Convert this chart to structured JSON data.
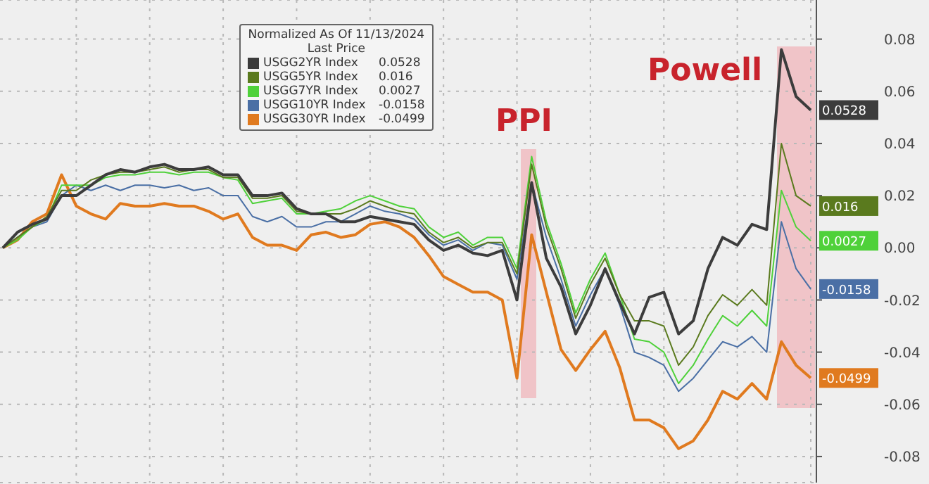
{
  "chart_data": {
    "type": "line",
    "legend_title": "Normalized As Of 11/13/2024\nLast Price",
    "legend": "top",
    "grid": true,
    "tick_labels": "y",
    "line_style": "solid",
    "marker": "none",
    "categories": [
      null,
      null,
      null,
      null,
      null,
      null,
      null,
      null,
      null,
      null,
      null,
      null,
      null,
      null,
      null,
      null,
      null,
      null,
      null,
      null,
      null,
      null,
      null,
      null,
      null,
      null,
      null,
      null,
      null,
      null,
      null,
      null,
      null,
      null,
      null,
      null,
      null,
      null,
      null,
      null,
      null,
      null,
      null,
      null,
      null,
      null,
      null,
      null,
      null,
      null,
      null,
      null,
      null,
      null,
      null,
      null
    ],
    "ylim": [
      -0.09,
      0.095
    ],
    "yticks": [
      -0.08,
      -0.06,
      -0.04,
      -0.02,
      {
        "value": 0,
        "label": "0.00"
      },
      0.02,
      0.04,
      0.06,
      0.08
    ],
    "annotations": [
      "PPI",
      "Powell"
    ],
    "series": [
      {
        "name": "USGG2YR Index",
        "color": "#3c3c3c",
        "values": [
          0,
          0.006,
          0.009,
          0.011,
          0.02,
          0.02,
          0.024,
          0.028,
          0.03,
          0.029,
          0.031,
          0.032,
          0.03,
          0.03,
          0.031,
          0.028,
          0.028,
          0.02,
          0.02,
          0.021,
          0.015,
          0.013,
          0.013,
          0.01,
          0.01,
          0.012,
          0.011,
          0.01,
          0.009,
          0.003,
          -0.001,
          0.001,
          -0.002,
          -0.003,
          -0.001,
          -0.02,
          0.025,
          -0.004,
          -0.015,
          -0.033,
          -0.022,
          -0.008,
          -0.021,
          -0.033,
          -0.019,
          -0.017,
          -0.033,
          -0.028,
          -0.008,
          0.004,
          0.001,
          0.009,
          0.007,
          0.076,
          0.058,
          0.0528
        ],
        "value_labels": [
          null,
          null,
          null,
          null,
          null,
          null,
          null,
          null,
          null,
          null,
          null,
          null,
          null,
          null,
          null,
          null,
          null,
          null,
          null,
          null,
          null,
          null,
          null,
          null,
          null,
          null,
          null,
          null,
          null,
          null,
          null,
          null,
          null,
          null,
          null,
          null,
          null,
          null,
          null,
          null,
          null,
          null,
          null,
          null,
          null,
          null,
          null,
          null,
          null,
          null,
          null,
          null,
          null,
          null,
          null,
          "0.0528"
        ]
      },
      {
        "name": "USGG5YR Index",
        "color": "#5a7a1e",
        "values": [
          0,
          0.004,
          0.008,
          0.012,
          0.022,
          0.022,
          0.026,
          0.028,
          0.029,
          0.029,
          0.03,
          0.031,
          0.029,
          0.03,
          0.03,
          0.027,
          0.027,
          0.019,
          0.019,
          0.02,
          0.014,
          0.013,
          0.013,
          0.013,
          0.015,
          0.018,
          0.016,
          0.014,
          0.013,
          0.006,
          0.002,
          0.004,
          0.0,
          0.002,
          0.002,
          -0.01,
          0.032,
          0.008,
          -0.008,
          -0.027,
          -0.014,
          -0.004,
          -0.018,
          -0.028,
          -0.028,
          -0.03,
          -0.045,
          -0.038,
          -0.026,
          -0.018,
          -0.022,
          -0.016,
          -0.022,
          0.04,
          0.02,
          0.016
        ],
        "value_labels": [
          null,
          null,
          null,
          null,
          null,
          null,
          null,
          null,
          null,
          null,
          null,
          null,
          null,
          null,
          null,
          null,
          null,
          null,
          null,
          null,
          null,
          null,
          null,
          null,
          null,
          null,
          null,
          null,
          null,
          null,
          null,
          null,
          null,
          null,
          null,
          null,
          null,
          null,
          null,
          null,
          null,
          null,
          null,
          null,
          null,
          null,
          null,
          null,
          null,
          null,
          null,
          null,
          null,
          null,
          null,
          "0.016"
        ]
      },
      {
        "name": "USGG7YR Index",
        "color": "#4fd13a",
        "values": [
          0,
          0.003,
          0.008,
          0.011,
          0.024,
          0.024,
          0.024,
          0.027,
          0.028,
          0.028,
          0.029,
          0.029,
          0.028,
          0.029,
          0.029,
          0.027,
          0.026,
          0.017,
          0.018,
          0.019,
          0.013,
          0.013,
          0.014,
          0.015,
          0.018,
          0.02,
          0.018,
          0.016,
          0.015,
          0.008,
          0.004,
          0.006,
          0.001,
          0.004,
          0.004,
          -0.008,
          0.035,
          0.01,
          -0.006,
          -0.025,
          -0.012,
          -0.002,
          -0.018,
          -0.035,
          -0.036,
          -0.04,
          -0.052,
          -0.045,
          -0.035,
          -0.026,
          -0.03,
          -0.024,
          -0.03,
          0.022,
          0.008,
          0.0027
        ],
        "value_labels": [
          null,
          null,
          null,
          null,
          null,
          null,
          null,
          null,
          null,
          null,
          null,
          null,
          null,
          null,
          null,
          null,
          null,
          null,
          null,
          null,
          null,
          null,
          null,
          null,
          null,
          null,
          null,
          null,
          null,
          null,
          null,
          null,
          null,
          null,
          null,
          null,
          null,
          null,
          null,
          null,
          null,
          null,
          null,
          null,
          null,
          null,
          null,
          null,
          null,
          null,
          null,
          null,
          null,
          null,
          null,
          "0.0027"
        ]
      },
      {
        "name": "USGG10YR Index",
        "color": "#4a6fa5",
        "values": [
          0,
          0.004,
          0.008,
          0.01,
          0.02,
          0.024,
          0.022,
          0.024,
          0.022,
          0.024,
          0.024,
          0.023,
          0.024,
          0.022,
          0.023,
          0.02,
          0.02,
          0.012,
          0.01,
          0.012,
          0.008,
          0.008,
          0.01,
          0.01,
          0.013,
          0.016,
          0.014,
          0.013,
          0.011,
          0.005,
          0.001,
          0.003,
          -0.001,
          0.002,
          0.001,
          -0.012,
          0.025,
          0.004,
          -0.012,
          -0.03,
          -0.018,
          -0.008,
          -0.022,
          -0.04,
          -0.042,
          -0.045,
          -0.055,
          -0.05,
          -0.043,
          -0.036,
          -0.038,
          -0.034,
          -0.04,
          0.01,
          -0.008,
          -0.0158
        ],
        "value_labels": [
          null,
          null,
          null,
          null,
          null,
          null,
          null,
          null,
          null,
          null,
          null,
          null,
          null,
          null,
          null,
          null,
          null,
          null,
          null,
          null,
          null,
          null,
          null,
          null,
          null,
          null,
          null,
          null,
          null,
          null,
          null,
          null,
          null,
          null,
          null,
          null,
          null,
          null,
          null,
          null,
          null,
          null,
          null,
          null,
          null,
          null,
          null,
          null,
          null,
          null,
          null,
          null,
          null,
          null,
          null,
          "-0.0158"
        ]
      },
      {
        "name": "USGG30YR Index",
        "color": "#e07a1f",
        "values": [
          0,
          0.003,
          0.01,
          0.013,
          0.028,
          0.016,
          0.013,
          0.011,
          0.017,
          0.016,
          0.016,
          0.017,
          0.016,
          0.016,
          0.014,
          0.011,
          0.013,
          0.004,
          0.001,
          0.001,
          -0.001,
          0.005,
          0.006,
          0.004,
          0.005,
          0.009,
          0.01,
          0.008,
          0.004,
          -0.003,
          -0.011,
          -0.014,
          -0.017,
          -0.017,
          -0.02,
          -0.05,
          0.005,
          -0.017,
          -0.039,
          -0.047,
          -0.039,
          -0.032,
          -0.046,
          -0.066,
          -0.066,
          -0.069,
          -0.077,
          -0.074,
          -0.066,
          -0.055,
          -0.058,
          -0.052,
          -0.058,
          -0.036,
          -0.045,
          -0.0499
        ],
        "value_labels": [
          null,
          null,
          null,
          null,
          null,
          null,
          null,
          null,
          null,
          null,
          null,
          null,
          null,
          null,
          null,
          null,
          null,
          null,
          null,
          null,
          null,
          null,
          null,
          null,
          null,
          null,
          null,
          null,
          null,
          null,
          null,
          null,
          null,
          null,
          null,
          null,
          null,
          null,
          null,
          null,
          null,
          null,
          null,
          null,
          null,
          null,
          null,
          null,
          null,
          null,
          null,
          null,
          null,
          null,
          null,
          "-0.0499"
        ]
      }
    ]
  }
}
